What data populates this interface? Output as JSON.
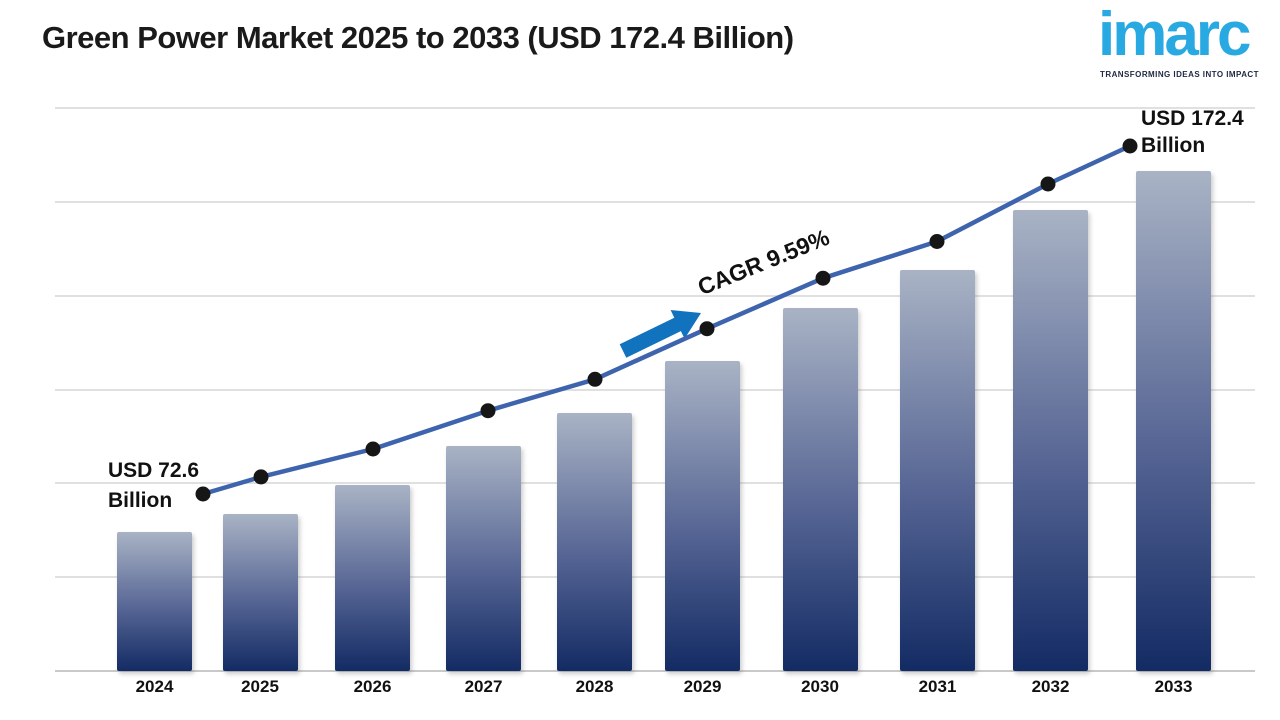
{
  "header": {
    "title": "Green Power Market 2025 to 2033 (USD 172.4 Billion)"
  },
  "logo": {
    "brand": "imarc",
    "tagline": "TRANSFORMING IDEAS INTO IMPACT"
  },
  "annotations": {
    "start_label_line1": "USD 72.6",
    "start_label_line2": "Billion",
    "end_label_line1": "USD 172.4",
    "end_label_line2": "Billion",
    "cagr_label": "CAGR 9.59%"
  },
  "colors": {
    "brand_cyan": "#29A9E1",
    "tagline_navy": "#222B45",
    "title_text": "#1A1A1A",
    "bar_gradient_top": "#A9B3C5",
    "bar_gradient_mid": "#566594",
    "bar_gradient_bottom": "#132B64",
    "trend_line": "#3E64AE",
    "data_dot": "#161616",
    "arrow_blue": "#1173BD",
    "gridline": "#E0E0E0",
    "axis_line": "#C9C9C9"
  },
  "chart_data": {
    "type": "bar",
    "overlay": "line",
    "title": "Green Power Market 2025 to 2033 (USD 172.4 Billion)",
    "unit": "USD Billion",
    "categories": [
      "2024",
      "2025",
      "2026",
      "2027",
      "2028",
      "2029",
      "2030",
      "2031",
      "2032",
      "2033"
    ],
    "values": [
      72.6,
      77.5,
      85.5,
      96.5,
      105.5,
      120.0,
      134.5,
      145.0,
      161.5,
      172.4
    ],
    "values_estimated": true,
    "labeled_anchors": {
      "2024": 72.6,
      "2033": 172.4
    },
    "value_labels": {
      "2024": "USD 72.6 Billion",
      "2033": "USD 172.4 Billion"
    },
    "cagr_annotation": "CAGR 9.59%",
    "xlabel": "",
    "ylabel": "",
    "y_axis_ticks_visible": false,
    "gridlines": "horizontal",
    "legend": "none"
  }
}
